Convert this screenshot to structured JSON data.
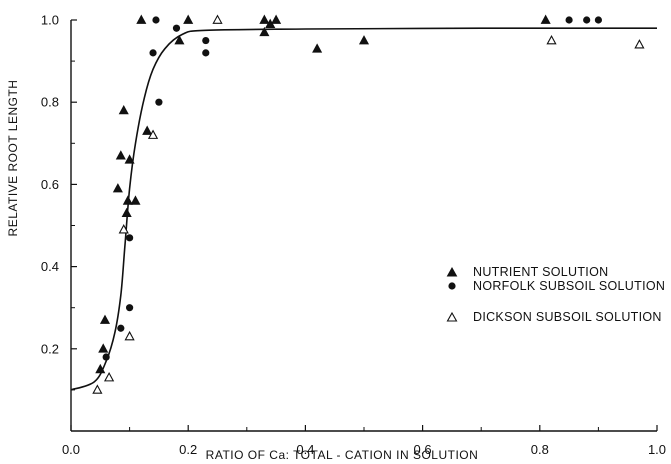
{
  "chart_data": {
    "type": "scatter",
    "xlabel": "RATIO OF Ca: TOTAL - CATION IN SOLUTION",
    "ylabel": "RELATIVE ROOT LENGTH",
    "xlim": [
      0,
      1.0
    ],
    "ylim": [
      0,
      1.0
    ],
    "x_ticks": [
      "0.0",
      "0.2",
      "0.4",
      "0.6",
      "0.8",
      "1.0"
    ],
    "y_ticks": [
      "0.2",
      "0.4",
      "0.6",
      "0.8",
      "1.0"
    ],
    "grid": false,
    "legend_position": "right-middle",
    "series": [
      {
        "name": "NUTRIENT SOLUTION",
        "marker": "filled-triangle",
        "points": [
          {
            "x": 0.05,
            "y": 0.15
          },
          {
            "x": 0.055,
            "y": 0.2
          },
          {
            "x": 0.058,
            "y": 0.27
          },
          {
            "x": 0.08,
            "y": 0.59
          },
          {
            "x": 0.085,
            "y": 0.67
          },
          {
            "x": 0.09,
            "y": 0.78
          },
          {
            "x": 0.095,
            "y": 0.53
          },
          {
            "x": 0.097,
            "y": 0.56
          },
          {
            "x": 0.1,
            "y": 0.66
          },
          {
            "x": 0.11,
            "y": 0.56
          },
          {
            "x": 0.12,
            "y": 1.0
          },
          {
            "x": 0.13,
            "y": 0.73
          },
          {
            "x": 0.185,
            "y": 0.95
          },
          {
            "x": 0.2,
            "y": 1.0
          },
          {
            "x": 0.33,
            "y": 1.0
          },
          {
            "x": 0.33,
            "y": 0.97
          },
          {
            "x": 0.34,
            "y": 0.99
          },
          {
            "x": 0.35,
            "y": 1.0
          },
          {
            "x": 0.42,
            "y": 0.93
          },
          {
            "x": 0.5,
            "y": 0.95
          },
          {
            "x": 0.81,
            "y": 1.0
          }
        ]
      },
      {
        "name": "NORFOLK SUBSOIL SOLUTION",
        "marker": "filled-circle",
        "points": [
          {
            "x": 0.06,
            "y": 0.18
          },
          {
            "x": 0.085,
            "y": 0.25
          },
          {
            "x": 0.1,
            "y": 0.3
          },
          {
            "x": 0.1,
            "y": 0.47
          },
          {
            "x": 0.14,
            "y": 0.92
          },
          {
            "x": 0.145,
            "y": 1.0
          },
          {
            "x": 0.15,
            "y": 0.8
          },
          {
            "x": 0.18,
            "y": 0.98
          },
          {
            "x": 0.23,
            "y": 0.95
          },
          {
            "x": 0.23,
            "y": 0.92
          },
          {
            "x": 0.85,
            "y": 1.0
          },
          {
            "x": 0.88,
            "y": 1.0
          },
          {
            "x": 0.9,
            "y": 1.0
          }
        ]
      },
      {
        "name": "DICKSON SUBSOIL SOLUTION",
        "marker": "open-triangle",
        "points": [
          {
            "x": 0.045,
            "y": 0.1
          },
          {
            "x": 0.065,
            "y": 0.13
          },
          {
            "x": 0.09,
            "y": 0.49
          },
          {
            "x": 0.1,
            "y": 0.23
          },
          {
            "x": 0.14,
            "y": 0.72
          },
          {
            "x": 0.25,
            "y": 1.0
          },
          {
            "x": 0.82,
            "y": 0.95
          },
          {
            "x": 0.97,
            "y": 0.94
          }
        ]
      }
    ],
    "fitted_curve": [
      {
        "x": 0.0,
        "y": 0.1
      },
      {
        "x": 0.04,
        "y": 0.12
      },
      {
        "x": 0.06,
        "y": 0.17
      },
      {
        "x": 0.075,
        "y": 0.24
      },
      {
        "x": 0.085,
        "y": 0.33
      },
      {
        "x": 0.092,
        "y": 0.45
      },
      {
        "x": 0.1,
        "y": 0.59
      },
      {
        "x": 0.11,
        "y": 0.7
      },
      {
        "x": 0.125,
        "y": 0.81
      },
      {
        "x": 0.14,
        "y": 0.88
      },
      {
        "x": 0.16,
        "y": 0.93
      },
      {
        "x": 0.19,
        "y": 0.965
      },
      {
        "x": 0.23,
        "y": 0.975
      },
      {
        "x": 0.4,
        "y": 0.978
      },
      {
        "x": 0.7,
        "y": 0.98
      },
      {
        "x": 1.0,
        "y": 0.98
      }
    ]
  }
}
